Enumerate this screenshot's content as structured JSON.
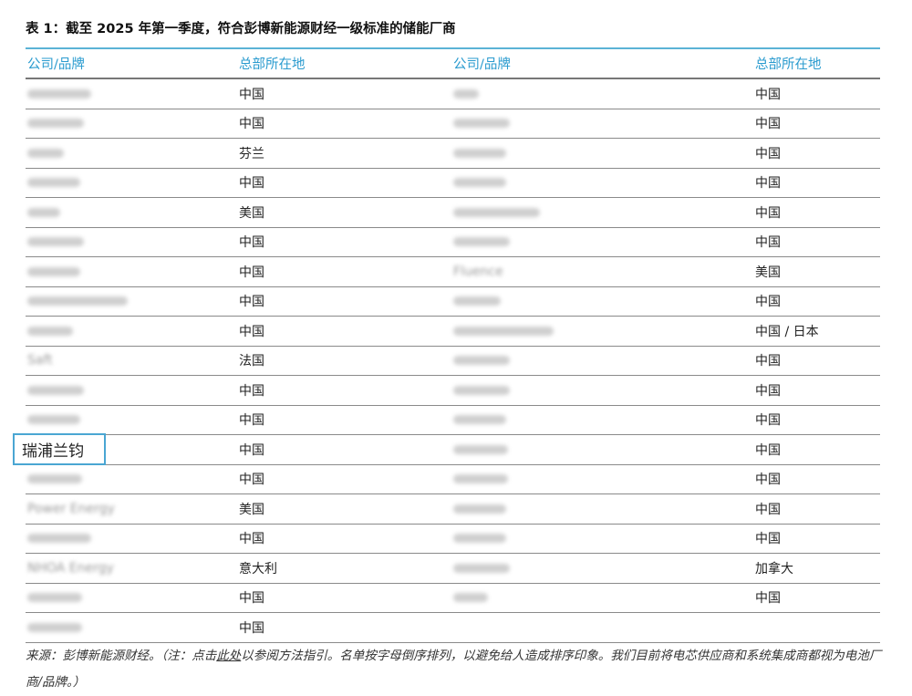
{
  "title": "表 1：截至 2025 年第一季度，符合彭博新能源财经一级标准的储能厂商",
  "headers": [
    "公司/品牌",
    "总部所在地",
    "公司/品牌",
    "总部所在地"
  ],
  "highlighted_company": "瑞浦兰钧",
  "rows": [
    {
      "c1": null,
      "c2": "中国",
      "c3": null,
      "c4": "中国"
    },
    {
      "c1": null,
      "c2": "中国",
      "c3": null,
      "c4": "中国"
    },
    {
      "c1": null,
      "c2": "芬兰",
      "c3": null,
      "c4": "中国"
    },
    {
      "c1": null,
      "c2": "中国",
      "c3": null,
      "c4": "中国"
    },
    {
      "c1": null,
      "c2": "美国",
      "c3": null,
      "c4": "中国"
    },
    {
      "c1": null,
      "c2": "中国",
      "c3": null,
      "c4": "中国"
    },
    {
      "c1": null,
      "c2": "中国",
      "c3": "Fluence",
      "c4": "美国"
    },
    {
      "c1": null,
      "c2": "中国",
      "c3": null,
      "c4": "中国"
    },
    {
      "c1": null,
      "c2": "中国",
      "c3": null,
      "c4": "中国 / 日本"
    },
    {
      "c1": "Saft",
      "c2": "法国",
      "c3": null,
      "c4": "中国"
    },
    {
      "c1": null,
      "c2": "中国",
      "c3": null,
      "c4": "中国"
    },
    {
      "c1": null,
      "c2": "中国",
      "c3": null,
      "c4": "中国"
    },
    {
      "c1": "瑞浦兰钧",
      "c2": "中国",
      "c3": null,
      "c4": "中国"
    },
    {
      "c1": null,
      "c2": "中国",
      "c3": null,
      "c4": "中国"
    },
    {
      "c1": "Power Energy",
      "c2": "美国",
      "c3": null,
      "c4": "中国"
    },
    {
      "c1": null,
      "c2": "中国",
      "c3": null,
      "c4": "中国"
    },
    {
      "c1": "NHOA Energy",
      "c2": "意大利",
      "c3": null,
      "c4": "加拿大"
    },
    {
      "c1": null,
      "c2": "中国",
      "c3": null,
      "c4": "中国"
    },
    {
      "c1": null,
      "c2": "中国",
      "c3": "",
      "c4": ""
    }
  ],
  "footnote": {
    "prefix": "来源：彭博新能源财经。（注：点击",
    "link": "此处",
    "suffix": "以参阅方法指引。名单按字母倒序排列，以避免给人造成排序印象。我们目前将电芯供应商和系统集成商都视为电池厂商/品牌。）"
  },
  "colors": {
    "accent": "#2a9bcf",
    "highlight_border": "#4aa6d3"
  }
}
